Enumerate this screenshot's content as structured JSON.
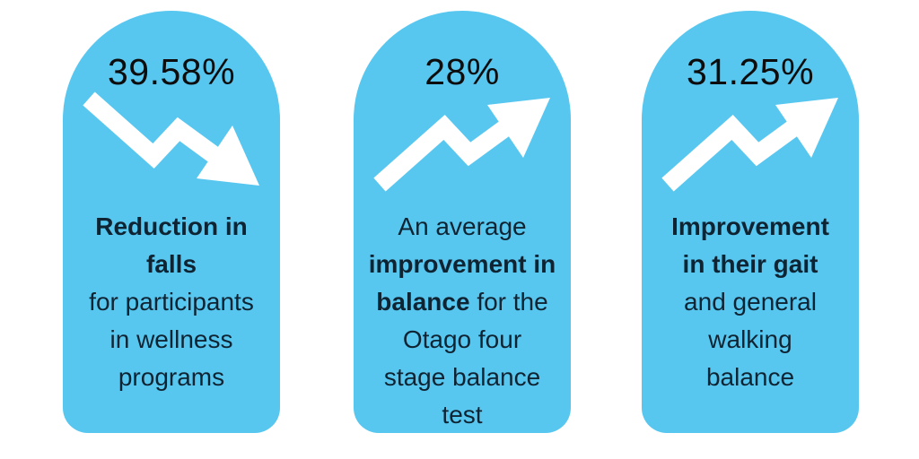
{
  "chart_data": {
    "type": "table",
    "title": "",
    "categories": [
      "Reduction in falls for participants in wellness programs",
      "An average improvement in balance for the Otago four stage balance test",
      "Improvement in their gait and general walking balance"
    ],
    "values": [
      39.58,
      28,
      31.25
    ],
    "unit": "%",
    "trends": [
      "down",
      "up",
      "up"
    ],
    "legend": "none",
    "grid": "off"
  },
  "colors": {
    "page_background": "#FFFFFF",
    "card_blue": "#58C7F0",
    "value_text": "#0D0D0D",
    "body_text": "#0F2433",
    "arrow_white": "#FFFFFF"
  },
  "cards": [
    {
      "value": "39.58%",
      "trend": "down",
      "icon": "trend-down-arrow",
      "description_lines": [
        [
          {
            "text": "Reduction in",
            "bold": true
          }
        ],
        [
          {
            "text": "falls",
            "bold": true
          }
        ],
        [
          {
            "text": "for participants",
            "bold": false
          }
        ],
        [
          {
            "text": "in wellness",
            "bold": false
          }
        ],
        [
          {
            "text": "programs",
            "bold": false
          }
        ]
      ]
    },
    {
      "value": "28%",
      "trend": "up",
      "icon": "trend-up-arrow",
      "description_lines": [
        [
          {
            "text": "An average",
            "bold": false
          }
        ],
        [
          {
            "text": "improvement in",
            "bold": true
          }
        ],
        [
          {
            "text": "balance",
            "bold": true
          },
          {
            "text": " for the",
            "bold": false
          }
        ],
        [
          {
            "text": "Otago four",
            "bold": false
          }
        ],
        [
          {
            "text": "stage balance",
            "bold": false
          }
        ],
        [
          {
            "text": "test",
            "bold": false
          }
        ]
      ]
    },
    {
      "value": "31.25%",
      "trend": "up",
      "icon": "trend-up-arrow",
      "description_lines": [
        [
          {
            "text": "Improvement",
            "bold": true
          }
        ],
        [
          {
            "text": "in their gait",
            "bold": true
          }
        ],
        [
          {
            "text": "and general",
            "bold": false
          }
        ],
        [
          {
            "text": "walking",
            "bold": false
          }
        ],
        [
          {
            "text": "balance",
            "bold": false
          }
        ]
      ]
    }
  ]
}
